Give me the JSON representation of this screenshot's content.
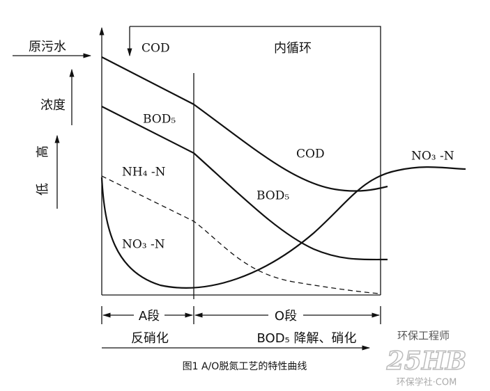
{
  "left_labels": {
    "influent": "原污水",
    "concentration": "浓度",
    "high": "高",
    "low": "低"
  },
  "top_labels": {
    "inlet": "COD",
    "recycle": "内循环"
  },
  "curve_labels": {
    "cod_a": "BOD₅",
    "cod_o": "COD",
    "bod_o": "BOD₅",
    "nh4": "NH₄ -N",
    "no3_a": "NO₃ -N",
    "no3_out": "NO₃ -N"
  },
  "zones": {
    "a": "A段",
    "o": "O段"
  },
  "processes": {
    "a": "反硝化",
    "o": "BOD₅ 降解、硝化"
  },
  "caption": "图1 A/O脱氮工艺的特性曲线",
  "watermark": {
    "account": "环保工程师",
    "logo": "25HB",
    "site": "环保学社·COM"
  }
}
